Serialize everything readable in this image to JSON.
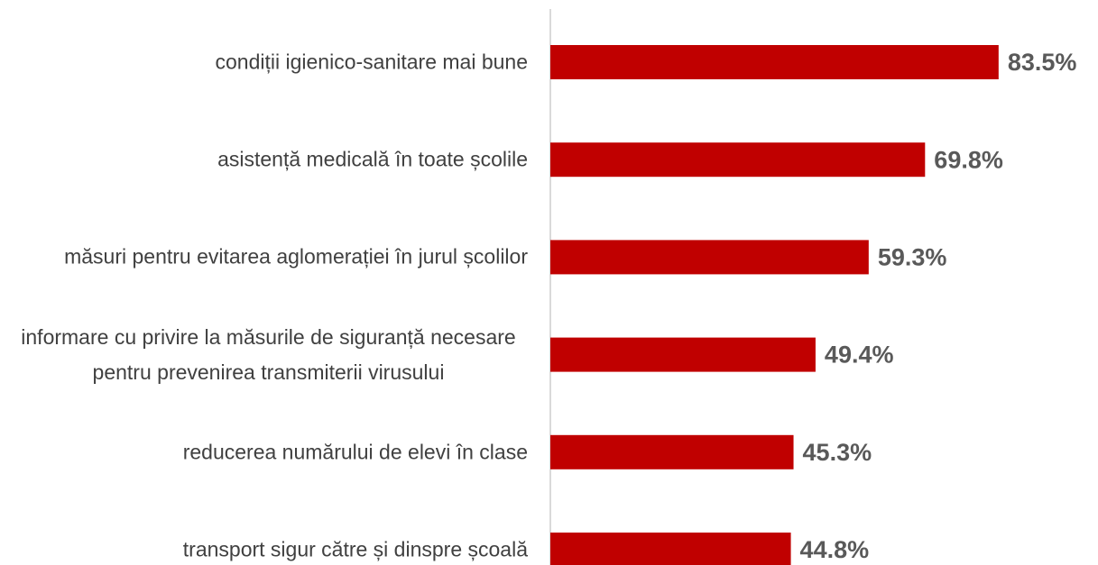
{
  "chart_data": {
    "type": "bar",
    "orientation": "horizontal",
    "categories": [
      "condiții igienico-sanitare mai bune",
      "asistență medicală în toate școlile",
      "măsuri pentru evitarea aglomerației în jurul școlilor",
      "informare cu privire la măsurile de siguranță necesare pentru prevenirea transmiterii virusului",
      "reducerea numărului de elevi în clase",
      "transport sigur către și dinspre școală"
    ],
    "values": [
      83.5,
      69.8,
      59.3,
      49.4,
      45.3,
      44.8
    ],
    "value_labels": [
      "83.5%",
      "69.8%",
      "59.3%",
      "49.4%",
      "45.3%",
      "44.8%"
    ],
    "color": "#c00000",
    "xlim": [
      0,
      100
    ]
  }
}
